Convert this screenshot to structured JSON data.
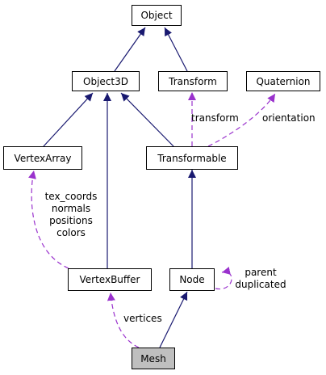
{
  "nodes": {
    "object": "Object",
    "object3d": "Object3D",
    "transform": "Transform",
    "quaternion": "Quaternion",
    "vertexarray": "VertexArray",
    "transformable": "Transformable",
    "vertexbuffer": "VertexBuffer",
    "node": "Node",
    "mesh": "Mesh"
  },
  "edge_labels": {
    "transform": "transform",
    "orientation": "orientation",
    "vertexarray_members": [
      "tex_coords",
      "normals",
      "positions",
      "colors"
    ],
    "node_members": [
      "parent",
      "duplicated"
    ],
    "vertices": "vertices"
  },
  "colors": {
    "inheritance": "#191970",
    "usage": "#9a32cd",
    "highlight_fill": "#bfbfbf"
  }
}
